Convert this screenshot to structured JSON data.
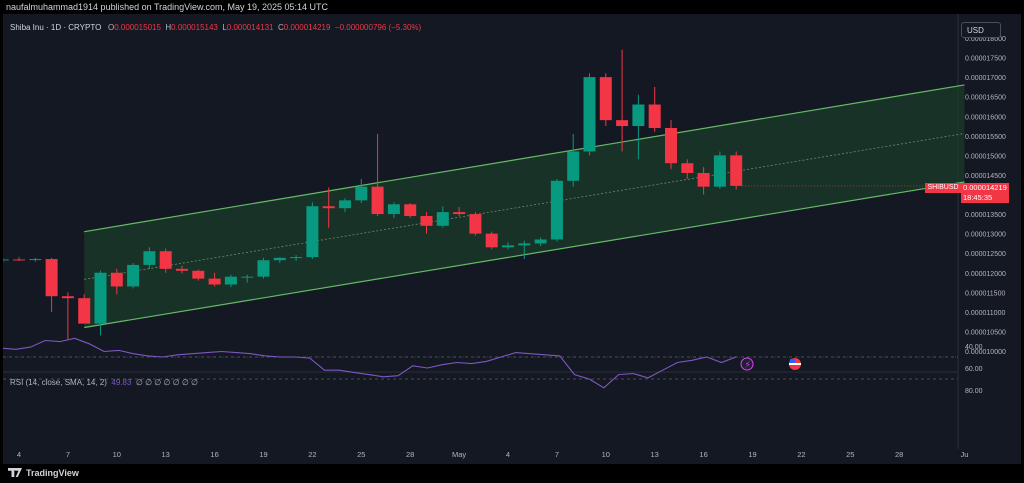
{
  "header": {
    "author_line": "naufalmuhammad1914 published on TradingView.com, May 19, 2025 05:14 UTC"
  },
  "legend": {
    "symbol": "Shiba Inu · 1D · CRYPTO",
    "o_label": "O",
    "o": "0.000015015",
    "h_label": "H",
    "h": "0.000015143",
    "l_label": "L",
    "l": "0.000014131",
    "c_label": "C",
    "c": "0.000014219",
    "change": "−0.000000796 (−5.30%)"
  },
  "currency_button": "USD",
  "price_tag": {
    "symbol": "SHIBUSD",
    "price": "0.000014219",
    "countdown": "18:45:35"
  },
  "rsi_legend": {
    "label": "RSI (14, close, SMA, 14, 2)",
    "value": "49.83",
    "placeholders": "∅ ∅ ∅ ∅ ∅ ∅ ∅"
  },
  "branding": {
    "label": "TradingView"
  },
  "colors": {
    "up": "#089981",
    "down": "#f23645",
    "channel_line": "#66bb6a",
    "channel_fill": "#1b3b2a",
    "rsi": "#7e57c2",
    "background": "#141823"
  },
  "chart_data": {
    "type": "candlestick",
    "price_axis": {
      "labels": [
        "0.000018000",
        "0.000017500",
        "0.000017000",
        "0.000016500",
        "0.000016000",
        "0.000015500",
        "0.000015000",
        "0.000014500",
        "0.000014000",
        "0.000013500",
        "0.000013000",
        "0.000012500",
        "0.000012000",
        "0.000011500",
        "0.000011000",
        "0.000010500",
        "0.000010000"
      ],
      "min": 9.5e-06,
      "max": 1.8e-05
    },
    "time_axis": {
      "labels": [
        "4",
        "7",
        "10",
        "13",
        "16",
        "19",
        "22",
        "25",
        "28",
        "May",
        "4",
        "7",
        "10",
        "13",
        "16",
        "19",
        "22",
        "25",
        "28",
        "Ju"
      ]
    },
    "candles": [
      {
        "date": "Apr 3",
        "o": 1.232e-05,
        "h": 1.238e-05,
        "l": 1.224e-05,
        "c": 1.234e-05
      },
      {
        "date": "Apr 4",
        "o": 1.234e-05,
        "h": 1.24e-05,
        "l": 1.23e-05,
        "c": 1.233e-05
      },
      {
        "date": "Apr 5",
        "o": 1.233e-05,
        "h": 1.238e-05,
        "l": 1.228e-05,
        "c": 1.235e-05
      },
      {
        "date": "Apr 6",
        "o": 1.235e-05,
        "h": 1.238e-05,
        "l": 1.1e-05,
        "c": 1.14e-05
      },
      {
        "date": "Apr 7",
        "o": 1.14e-05,
        "h": 1.15e-05,
        "l": 1.03e-05,
        "c": 1.135e-05
      },
      {
        "date": "Apr 8",
        "o": 1.135e-05,
        "h": 1.145e-05,
        "l": 1.075e-05,
        "c": 1.07e-05
      },
      {
        "date": "Apr 9",
        "o": 1.07e-05,
        "h": 1.205e-05,
        "l": 1.04e-05,
        "c": 1.2e-05
      },
      {
        "date": "Apr 10",
        "o": 1.2e-05,
        "h": 1.21e-05,
        "l": 1.145e-05,
        "c": 1.165e-05
      },
      {
        "date": "Apr 11",
        "o": 1.165e-05,
        "h": 1.225e-05,
        "l": 1.16e-05,
        "c": 1.22e-05
      },
      {
        "date": "Apr 12",
        "o": 1.22e-05,
        "h": 1.265e-05,
        "l": 1.21e-05,
        "c": 1.255e-05
      },
      {
        "date": "Apr 13",
        "o": 1.255e-05,
        "h": 1.262e-05,
        "l": 1.2e-05,
        "c": 1.21e-05
      },
      {
        "date": "Apr 14",
        "o": 1.21e-05,
        "h": 1.218e-05,
        "l": 1.198e-05,
        "c": 1.205e-05
      },
      {
        "date": "Apr 15",
        "o": 1.205e-05,
        "h": 1.208e-05,
        "l": 1.18e-05,
        "c": 1.185e-05
      },
      {
        "date": "Apr 16",
        "o": 1.185e-05,
        "h": 1.2e-05,
        "l": 1.165e-05,
        "c": 1.17e-05
      },
      {
        "date": "Apr 17",
        "o": 1.17e-05,
        "h": 1.195e-05,
        "l": 1.163e-05,
        "c": 1.19e-05
      },
      {
        "date": "Apr 18",
        "o": 1.19e-05,
        "h": 1.195e-05,
        "l": 1.175e-05,
        "c": 1.19e-05
      },
      {
        "date": "Apr 19",
        "o": 1.19e-05,
        "h": 1.238e-05,
        "l": 1.185e-05,
        "c": 1.232e-05
      },
      {
        "date": "Apr 20",
        "o": 1.232e-05,
        "h": 1.24e-05,
        "l": 1.225e-05,
        "c": 1.238e-05
      },
      {
        "date": "Apr 21",
        "o": 1.238e-05,
        "h": 1.245e-05,
        "l": 1.23e-05,
        "c": 1.24e-05
      },
      {
        "date": "Apr 22",
        "o": 1.24e-05,
        "h": 1.38e-05,
        "l": 1.235e-05,
        "c": 1.37e-05
      },
      {
        "date": "Apr 23",
        "o": 1.37e-05,
        "h": 1.418e-05,
        "l": 1.315e-05,
        "c": 1.365e-05
      },
      {
        "date": "Apr 24",
        "o": 1.365e-05,
        "h": 1.39e-05,
        "l": 1.355e-05,
        "c": 1.385e-05
      },
      {
        "date": "Apr 25",
        "o": 1.385e-05,
        "h": 1.44e-05,
        "l": 1.378e-05,
        "c": 1.42e-05
      },
      {
        "date": "Apr 26",
        "o": 1.42e-05,
        "h": 1.555e-05,
        "l": 1.345e-05,
        "c": 1.35e-05
      },
      {
        "date": "Apr 27",
        "o": 1.35e-05,
        "h": 1.38e-05,
        "l": 1.34e-05,
        "c": 1.375e-05
      },
      {
        "date": "Apr 28",
        "o": 1.375e-05,
        "h": 1.378e-05,
        "l": 1.34e-05,
        "c": 1.345e-05
      },
      {
        "date": "Apr 29",
        "o": 1.345e-05,
        "h": 1.355e-05,
        "l": 1.3e-05,
        "c": 1.32e-05
      },
      {
        "date": "Apr 30",
        "o": 1.32e-05,
        "h": 1.37e-05,
        "l": 1.315e-05,
        "c": 1.355e-05
      },
      {
        "date": "May 1",
        "o": 1.355e-05,
        "h": 1.368e-05,
        "l": 1.345e-05,
        "c": 1.35e-05
      },
      {
        "date": "May 2",
        "o": 1.35e-05,
        "h": 1.355e-05,
        "l": 1.295e-05,
        "c": 1.3e-05
      },
      {
        "date": "May 3",
        "o": 1.3e-05,
        "h": 1.305e-05,
        "l": 1.26e-05,
        "c": 1.265e-05
      },
      {
        "date": "May 4",
        "o": 1.265e-05,
        "h": 1.278e-05,
        "l": 1.26e-05,
        "c": 1.27e-05
      },
      {
        "date": "May 5",
        "o": 1.27e-05,
        "h": 1.282e-05,
        "l": 1.235e-05,
        "c": 1.275e-05
      },
      {
        "date": "May 6",
        "o": 1.275e-05,
        "h": 1.29e-05,
        "l": 1.268e-05,
        "c": 1.285e-05
      },
      {
        "date": "May 7",
        "o": 1.285e-05,
        "h": 1.44e-05,
        "l": 1.28e-05,
        "c": 1.435e-05
      },
      {
        "date": "May 8",
        "o": 1.435e-05,
        "h": 1.555e-05,
        "l": 1.42e-05,
        "c": 1.51e-05
      },
      {
        "date": "May 9",
        "o": 1.51e-05,
        "h": 1.71e-05,
        "l": 1.5e-05,
        "c": 1.7e-05
      },
      {
        "date": "May 10",
        "o": 1.7e-05,
        "h": 1.71e-05,
        "l": 1.575e-05,
        "c": 1.59e-05
      },
      {
        "date": "May 11",
        "o": 1.59e-05,
        "h": 1.77e-05,
        "l": 1.51e-05,
        "c": 1.575e-05
      },
      {
        "date": "May 12",
        "o": 1.575e-05,
        "h": 1.655e-05,
        "l": 1.49e-05,
        "c": 1.63e-05
      },
      {
        "date": "May 13",
        "o": 1.63e-05,
        "h": 1.675e-05,
        "l": 1.56e-05,
        "c": 1.57e-05
      },
      {
        "date": "May 14",
        "o": 1.57e-05,
        "h": 1.59e-05,
        "l": 1.465e-05,
        "c": 1.48e-05
      },
      {
        "date": "May 15",
        "o": 1.48e-05,
        "h": 1.49e-05,
        "l": 1.44e-05,
        "c": 1.455e-05
      },
      {
        "date": "May 16",
        "o": 1.455e-05,
        "h": 1.47e-05,
        "l": 1.4e-05,
        "c": 1.42e-05
      },
      {
        "date": "May 17",
        "o": 1.42e-05,
        "h": 1.51e-05,
        "l": 1.415e-05,
        "c": 1.5e-05
      },
      {
        "date": "May 18",
        "o": 1.5e-05,
        "h": 1.51e-05,
        "l": 1.413e-05,
        "c": 1.422e-05
      }
    ],
    "channel": {
      "upper": {
        "from_date": "Apr 8",
        "from_price": 1.305e-05,
        "to_date": "Jun 1",
        "to_price": 1.68e-05
      },
      "lower": {
        "from_date": "Apr 8",
        "from_price": 1.06e-05,
        "to_date": "Jun 1",
        "to_price": 1.432e-05
      },
      "mid": {
        "from_date": "Apr 8",
        "from_price": 1.183e-05,
        "to_date": "Jun 1",
        "to_price": 1.556e-05
      }
    },
    "rsi": {
      "axis_labels": [
        "80.00",
        "60.00",
        "40.00"
      ],
      "min": 30,
      "max": 85,
      "upper_band": 70,
      "lower_band": 30,
      "mid_line": 50,
      "values": [
        42,
        42,
        43,
        41,
        35,
        36,
        33,
        38,
        45,
        44,
        47,
        49,
        50,
        48,
        47,
        46,
        45,
        46,
        47,
        49,
        50,
        50,
        51,
        62,
        62,
        64,
        66,
        68,
        67,
        58,
        60,
        57,
        55,
        56,
        54,
        50,
        46,
        47,
        48,
        49,
        66,
        70,
        78,
        66,
        65,
        69,
        62,
        55,
        53,
        50,
        55,
        49.83
      ]
    }
  }
}
